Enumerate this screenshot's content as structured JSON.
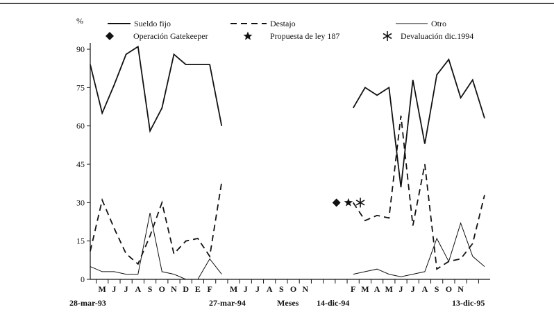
{
  "chart_data": {
    "type": "line",
    "ylabel": "%",
    "xlabel": "Meses",
    "ylim": [
      0,
      95
    ],
    "yticks": [
      0,
      15,
      30,
      45,
      60,
      75,
      90
    ],
    "x_tick_labels": [
      "M",
      "J",
      "J",
      "A",
      "S",
      "O",
      "N",
      "D",
      "E",
      "F",
      "M",
      "J",
      "J",
      "A",
      "S",
      "O",
      "N",
      "F",
      "M",
      "A",
      "M",
      "J",
      "J",
      "A",
      "S",
      "O",
      "N"
    ],
    "date_labels": [
      "28-mar-93",
      "27-mar-94",
      "14-dic-94",
      "13-dic-95"
    ],
    "legend": {
      "series_labels": [
        "Sueldo fijo",
        "Destajo",
        "Otro"
      ],
      "marker_labels": [
        "Operación Gatekeeper",
        "Propuesta de ley 187",
        "Devaluación dic.1994"
      ],
      "placement": "top"
    },
    "segments": {
      "period_1": "28-mar-93 to 27-mar-94",
      "period_2": "14-dic-94 to 13-dic-95"
    },
    "series": [
      {
        "name": "Sueldo fijo",
        "style": "solid",
        "period_1": [
          84,
          65,
          76,
          88,
          91,
          58,
          67,
          88,
          84,
          84,
          84,
          60
        ],
        "period_2": [
          67,
          75,
          72,
          75,
          36,
          78,
          53,
          80,
          86,
          71,
          78,
          63
        ]
      },
      {
        "name": "Destajo",
        "style": "dashed",
        "period_1": [
          11,
          31,
          20,
          10,
          6,
          17,
          30,
          10,
          15,
          16,
          9,
          38
        ],
        "period_2": [
          30,
          23,
          25,
          24,
          64,
          21,
          45,
          4,
          7,
          8,
          14,
          33
        ]
      },
      {
        "name": "Otro",
        "style": "thin",
        "period_1": [
          5,
          3,
          3,
          2,
          2,
          26,
          3,
          2,
          0,
          0,
          8,
          2
        ],
        "period_2": [
          2,
          3,
          4,
          2,
          1,
          2,
          3,
          16,
          7,
          22,
          9,
          5
        ]
      }
    ],
    "events": [
      {
        "name": "Operación Gatekeeper",
        "marker": "diamond",
        "month_index": 22,
        "y": 30
      },
      {
        "name": "Propuesta de ley 187",
        "marker": "star",
        "month_index": 23,
        "y": 30
      },
      {
        "name": "Devaluación dic.1994",
        "marker": "asterisk",
        "month_index": 24,
        "y": 30
      }
    ]
  }
}
